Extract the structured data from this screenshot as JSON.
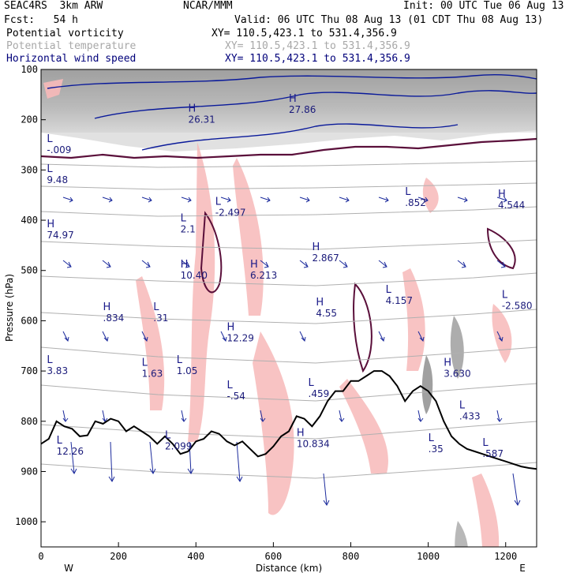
{
  "header": {
    "model": "SEAC4RS  3km ARW",
    "forecast": "Fcst:   54 h",
    "center": "NCAR/MMM",
    "init": "Init: 00 UTC Tue 06 Aug 13",
    "valid": "Valid: 06 UTC Thu 08 Aug 13 (01 CDT Thu 08 Aug 13)"
  },
  "fields": [
    {
      "label": "Potential vorticity",
      "xy": "XY= 110.5,423.1 to 531.4,356.9",
      "color": "#000000"
    },
    {
      "label": "Potential temperature",
      "xy": "XY= 110.5,423.1 to 531.4,356.9",
      "color": "#a8a8a8"
    },
    {
      "label": "Horizontal wind speed",
      "xy": "XY= 110.5,423.1 to 531.4,356.9",
      "color": "#00007a"
    }
  ],
  "chart_data": {
    "type": "cross-section",
    "xlabel": "Distance (km)",
    "ylabel": "Pressure (hPa)",
    "xlim": [
      0,
      1280
    ],
    "ylim": [
      100,
      1050
    ],
    "x_ticks": [
      0,
      200,
      400,
      600,
      800,
      1000,
      1200
    ],
    "y_ticks": [
      100,
      200,
      300,
      400,
      500,
      600,
      700,
      800,
      900,
      1000
    ],
    "y_inverted": true,
    "endpoints": {
      "left": "W",
      "right": "E"
    },
    "terrain": [
      [
        0,
        845
      ],
      [
        20,
        835
      ],
      [
        40,
        800
      ],
      [
        60,
        810
      ],
      [
        80,
        815
      ],
      [
        100,
        830
      ],
      [
        120,
        828
      ],
      [
        140,
        800
      ],
      [
        160,
        805
      ],
      [
        180,
        795
      ],
      [
        200,
        800
      ],
      [
        220,
        820
      ],
      [
        240,
        810
      ],
      [
        260,
        820
      ],
      [
        280,
        830
      ],
      [
        300,
        845
      ],
      [
        320,
        830
      ],
      [
        340,
        845
      ],
      [
        360,
        865
      ],
      [
        380,
        860
      ],
      [
        400,
        840
      ],
      [
        420,
        835
      ],
      [
        440,
        820
      ],
      [
        460,
        825
      ],
      [
        480,
        840
      ],
      [
        500,
        848
      ],
      [
        520,
        840
      ],
      [
        540,
        855
      ],
      [
        560,
        870
      ],
      [
        580,
        865
      ],
      [
        600,
        850
      ],
      [
        620,
        830
      ],
      [
        640,
        820
      ],
      [
        660,
        790
      ],
      [
        680,
        795
      ],
      [
        700,
        810
      ],
      [
        720,
        790
      ],
      [
        740,
        760
      ],
      [
        760,
        740
      ],
      [
        780,
        740
      ],
      [
        800,
        720
      ],
      [
        820,
        720
      ],
      [
        840,
        710
      ],
      [
        860,
        700
      ],
      [
        880,
        700
      ],
      [
        900,
        710
      ],
      [
        920,
        730
      ],
      [
        940,
        760
      ],
      [
        960,
        740
      ],
      [
        980,
        730
      ],
      [
        1000,
        740
      ],
      [
        1020,
        760
      ],
      [
        1040,
        800
      ],
      [
        1060,
        830
      ],
      [
        1080,
        845
      ],
      [
        1100,
        855
      ],
      [
        1120,
        860
      ],
      [
        1140,
        865
      ],
      [
        1160,
        870
      ],
      [
        1180,
        875
      ],
      [
        1200,
        880
      ],
      [
        1220,
        885
      ],
      [
        1240,
        890
      ],
      [
        1260,
        893
      ],
      [
        1280,
        895
      ]
    ],
    "annotations": [
      {
        "type": "L",
        "value": "-.009",
        "x": 15,
        "p": 260
      },
      {
        "type": "L",
        "value": "9.48",
        "x": 15,
        "p": 320
      },
      {
        "type": "H",
        "value": "74.97",
        "x": 15,
        "p": 430
      },
      {
        "type": "H",
        "value": "26.31",
        "x": 380,
        "p": 200
      },
      {
        "type": "H",
        "value": "27.86",
        "x": 640,
        "p": 180
      },
      {
        "type": "L",
        "value": "-2.497",
        "x": 450,
        "p": 385
      },
      {
        "type": "L",
        "value": "2.1",
        "x": 360,
        "p": 418
      },
      {
        "type": "H",
        "value": "10.40",
        "x": 360,
        "p": 510
      },
      {
        "type": "H",
        "value": "6.213",
        "x": 540,
        "p": 510
      },
      {
        "type": "H",
        "value": "2.867",
        "x": 700,
        "p": 475
      },
      {
        "type": "L",
        "value": ".852",
        "x": 940,
        "p": 365
      },
      {
        "type": "H",
        "value": "4.544",
        "x": 1180,
        "p": 370
      },
      {
        "type": "L",
        "value": "-2.580",
        "x": 1190,
        "p": 570
      },
      {
        "type": "H",
        "value": ".834",
        "x": 160,
        "p": 595
      },
      {
        "type": "L",
        "value": ".31",
        "x": 290,
        "p": 595
      },
      {
        "type": "H",
        "value": "12.29",
        "x": 480,
        "p": 635
      },
      {
        "type": "H",
        "value": "4.55",
        "x": 710,
        "p": 585
      },
      {
        "type": "L",
        "value": "4.157",
        "x": 890,
        "p": 560
      },
      {
        "type": "L",
        "value": "3.83",
        "x": 15,
        "p": 700
      },
      {
        "type": "L",
        "value": "1.63",
        "x": 260,
        "p": 705
      },
      {
        "type": "L",
        "value": "1.05",
        "x": 350,
        "p": 700
      },
      {
        "type": "H",
        "value": "3.630",
        "x": 1040,
        "p": 705
      },
      {
        "type": "L",
        "value": "-.54",
        "x": 480,
        "p": 750
      },
      {
        "type": "L",
        "value": ".459",
        "x": 690,
        "p": 745
      },
      {
        "type": "L",
        "value": ".433",
        "x": 1080,
        "p": 790
      },
      {
        "type": "L",
        "value": "12.26",
        "x": 40,
        "p": 860
      },
      {
        "type": "L",
        "value": "2.099",
        "x": 320,
        "p": 850
      },
      {
        "type": "H",
        "value": "10.834",
        "x": 660,
        "p": 845
      },
      {
        "type": "L",
        "value": ".587",
        "x": 1140,
        "p": 865
      },
      {
        "type": "L",
        "value": ".35",
        "x": 1000,
        "p": 855
      }
    ]
  }
}
